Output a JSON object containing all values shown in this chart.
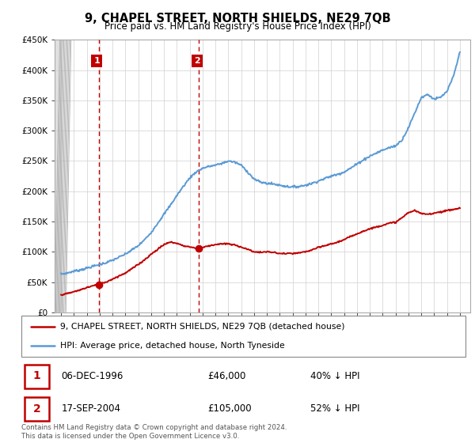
{
  "title": "9, CHAPEL STREET, NORTH SHIELDS, NE29 7QB",
  "subtitle": "Price paid vs. HM Land Registry's House Price Index (HPI)",
  "legend_line1": "9, CHAPEL STREET, NORTH SHIELDS, NE29 7QB (detached house)",
  "legend_line2": "HPI: Average price, detached house, North Tyneside",
  "sale1_label": "1",
  "sale2_label": "2",
  "sale1_date": "06-DEC-1996",
  "sale1_price": "£46,000",
  "sale1_hpi": "40% ↓ HPI",
  "sale2_date": "17-SEP-2004",
  "sale2_price": "£105,000",
  "sale2_hpi": "52% ↓ HPI",
  "footer": "Contains HM Land Registry data © Crown copyright and database right 2024.\nThis data is licensed under the Open Government Licence v3.0.",
  "hpi_color": "#5b9bd5",
  "price_color": "#c00000",
  "dot_color": "#c00000",
  "annotation_color": "#c00000",
  "grid_color": "#d0d0d0",
  "hatch_color": "#cccccc",
  "ylim": [
    0,
    450000
  ],
  "yticks": [
    0,
    50000,
    100000,
    150000,
    200000,
    250000,
    300000,
    350000,
    400000,
    450000
  ],
  "sale1_x": 1996.92,
  "sale1_y": 46000,
  "sale2_x": 2004.71,
  "sale2_y": 105000,
  "xmin": 1993.5,
  "xmax": 2025.8,
  "hpi_key_x": [
    1994,
    1994.5,
    1995,
    1995.5,
    1996,
    1996.5,
    1997,
    1997.5,
    1998,
    1998.5,
    1999,
    1999.5,
    2000,
    2000.5,
    2001,
    2001.5,
    2002,
    2002.5,
    2003,
    2003.5,
    2004,
    2004.5,
    2005,
    2005.5,
    2006,
    2006.5,
    2007,
    2007.5,
    2008,
    2008.5,
    2009,
    2009.5,
    2010,
    2010.5,
    2011,
    2011.5,
    2012,
    2012.5,
    2013,
    2013.5,
    2014,
    2014.5,
    2015,
    2015.5,
    2016,
    2016.5,
    2017,
    2017.5,
    2018,
    2018.5,
    2019,
    2019.5,
    2020,
    2020.5,
    2021,
    2021.5,
    2022,
    2022.5,
    2023,
    2023.5,
    2024,
    2024.5,
    2025
  ],
  "hpi_key_y": [
    63000,
    65000,
    68000,
    70000,
    73000,
    76000,
    79000,
    82000,
    86000,
    91000,
    96000,
    103000,
    110000,
    120000,
    132000,
    147000,
    162000,
    177000,
    193000,
    208000,
    222000,
    232000,
    238000,
    241000,
    243000,
    246000,
    250000,
    248000,
    243000,
    232000,
    220000,
    215000,
    213000,
    212000,
    210000,
    208000,
    207000,
    208000,
    210000,
    213000,
    217000,
    221000,
    225000,
    228000,
    232000,
    238000,
    245000,
    252000,
    258000,
    263000,
    268000,
    272000,
    275000,
    285000,
    305000,
    330000,
    355000,
    360000,
    352000,
    355000,
    365000,
    390000,
    430000
  ],
  "price_key_x": [
    1994,
    1994.5,
    1995,
    1995.5,
    1996,
    1996.5,
    1996.92,
    1997,
    1997.5,
    1998,
    1998.5,
    1999,
    1999.5,
    2000,
    2000.5,
    2001,
    2001.5,
    2002,
    2002.5,
    2003,
    2003.5,
    2004,
    2004.5,
    2004.71,
    2005,
    2005.5,
    2006,
    2006.5,
    2007,
    2007.5,
    2008,
    2008.5,
    2009,
    2009.5,
    2010,
    2010.5,
    2011,
    2011.5,
    2012,
    2012.5,
    2013,
    2013.5,
    2014,
    2014.5,
    2015,
    2015.5,
    2016,
    2016.5,
    2017,
    2017.5,
    2018,
    2018.5,
    2019,
    2019.5,
    2020,
    2020.5,
    2021,
    2021.5,
    2022,
    2022.5,
    2023,
    2023.5,
    2024,
    2024.5,
    2025
  ],
  "price_key_y": [
    29000,
    31000,
    34000,
    37000,
    41000,
    44000,
    46000,
    47000,
    50000,
    55000,
    60000,
    65000,
    72000,
    79000,
    87000,
    96000,
    104000,
    112000,
    116000,
    114000,
    110000,
    108000,
    106000,
    105000,
    107000,
    110000,
    112000,
    113000,
    113000,
    111000,
    108000,
    104000,
    100000,
    99000,
    100000,
    99000,
    97000,
    97000,
    97000,
    98000,
    100000,
    103000,
    107000,
    110000,
    113000,
    116000,
    120000,
    125000,
    130000,
    134000,
    138000,
    141000,
    144000,
    147000,
    149000,
    156000,
    165000,
    168000,
    163000,
    162000,
    164000,
    166000,
    168000,
    170000,
    172000
  ]
}
